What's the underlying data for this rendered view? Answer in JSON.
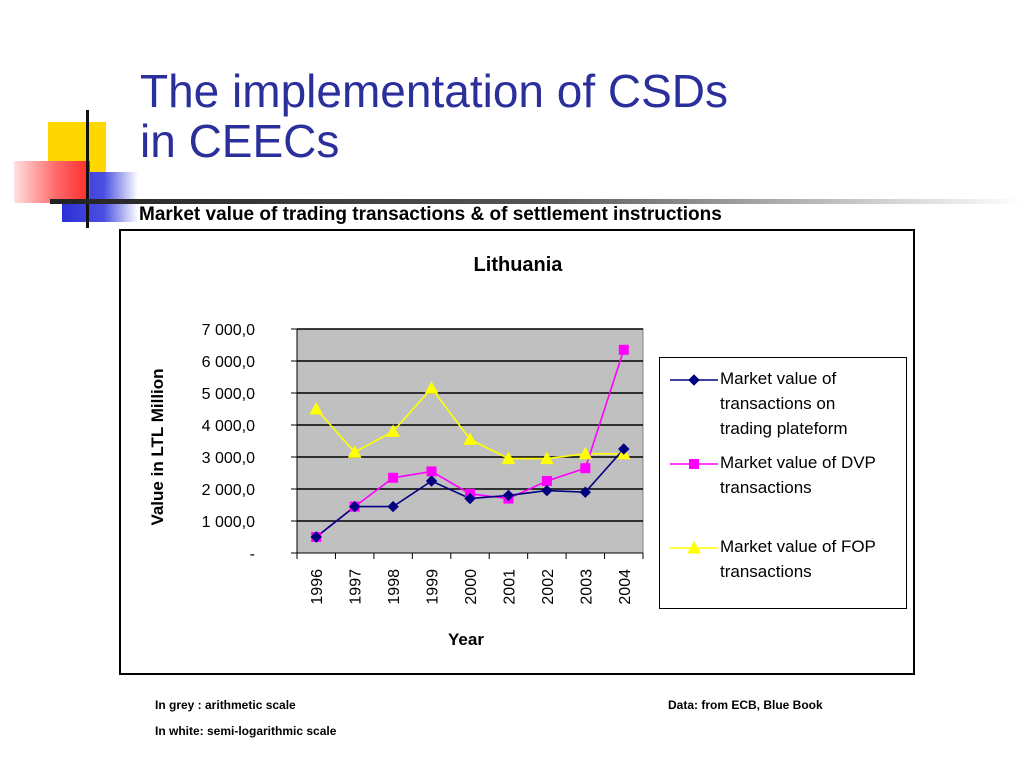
{
  "slide": {
    "title_line1": "The implementation of CSDs",
    "title_line2": "in CEECs",
    "subtitle": "Market value of trading transactions & of settlement instructions",
    "notes": {
      "grey_scale": "In grey : arithmetic scale",
      "white_scale": "In white: semi-logarithmic scale",
      "source": "Data: from ECB, Blue Book"
    }
  },
  "colors": {
    "title": "#2b2f9c",
    "plot_background": "#c0c0c0",
    "deco_yellow": "#ffd700",
    "deco_red": "#ff4040",
    "deco_blue": "#2c2fd4"
  },
  "chart_data": {
    "type": "line",
    "title": "Lithuania",
    "xlabel": "Year",
    "ylabel": "Value in LTL Million",
    "ylim": [
      0,
      7000
    ],
    "yticks": [
      0,
      1000,
      2000,
      3000,
      4000,
      5000,
      6000,
      7000
    ],
    "ytick_labels": [
      "-",
      "1 000,0",
      "2 000,0",
      "3 000,0",
      "4 000,0",
      "5 000,0",
      "6 000,0",
      "7 000,0"
    ],
    "grid": true,
    "legend_position": "right",
    "categories": [
      "1996",
      "1997",
      "1998",
      "1999",
      "2000",
      "2001",
      "2002",
      "2003",
      "2004"
    ],
    "series": [
      {
        "name": "Market value of transactions on trading plateform",
        "legend_lines": [
          "Market value of",
          "transactions on",
          "trading plateform"
        ],
        "color": "#000080",
        "marker": "diamond",
        "values": [
          500,
          1450,
          1450,
          2250,
          1700,
          1800,
          1950,
          1900,
          3250
        ]
      },
      {
        "name": "Market value of DVP transactions",
        "legend_lines": [
          "Market value of DVP",
          "transactions"
        ],
        "color": "#ff00ff",
        "marker": "square",
        "values": [
          500,
          1450,
          2350,
          2550,
          1850,
          1700,
          2250,
          2650,
          6350
        ]
      },
      {
        "name": "Market value of FOP transactions",
        "legend_lines": [
          "Market value of FOP",
          "transactions"
        ],
        "color": "#ffff00",
        "marker": "triangle",
        "values": [
          4500,
          3150,
          3800,
          5150,
          3550,
          2950,
          2950,
          3100,
          3100
        ]
      }
    ]
  }
}
